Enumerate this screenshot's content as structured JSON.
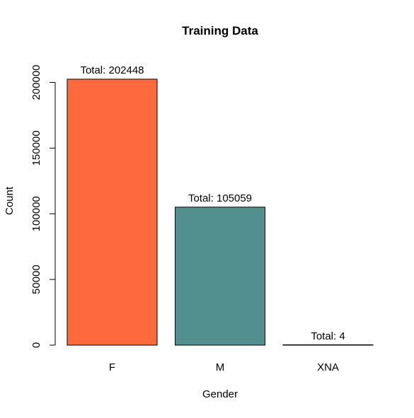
{
  "chart_data": {
    "type": "bar",
    "title": "Training Data",
    "xlabel": "Gender",
    "ylabel": "Count",
    "categories": [
      "F",
      "M",
      "XNA"
    ],
    "values": [
      202448,
      105059,
      4
    ],
    "data_labels": [
      "Total: 202448",
      "Total: 105059",
      "Total: 4"
    ],
    "bar_colors": [
      "#FF6A3D",
      "#528F8F",
      "#FFFFFF"
    ],
    "ylim": [
      0,
      200000
    ],
    "yticks": [
      0,
      50000,
      100000,
      150000,
      200000
    ],
    "ytick_labels": [
      "0",
      "50000",
      "100000",
      "150000",
      "200000"
    ],
    "grid": false,
    "legend": "none"
  }
}
